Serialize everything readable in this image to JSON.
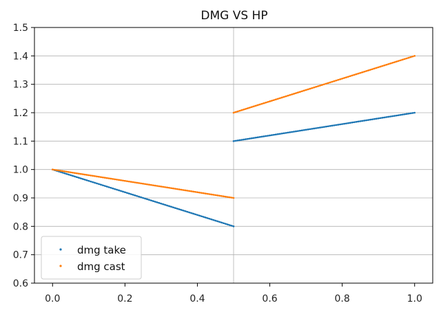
{
  "chart_data": {
    "type": "scatter",
    "title": "DMG VS HP",
    "xlabel": "",
    "ylabel": "",
    "xlim": [
      -0.05,
      1.05
    ],
    "ylim": [
      0.6,
      1.5
    ],
    "x_ticks": [
      0.0,
      0.2,
      0.4,
      0.6,
      0.8,
      1.0
    ],
    "x_tick_labels": [
      "0.0",
      "0.2",
      "0.4",
      "0.6",
      "0.8",
      "1.0"
    ],
    "y_ticks": [
      0.6,
      0.7,
      0.8,
      0.9,
      1.0,
      1.1,
      1.2,
      1.3,
      1.4,
      1.5
    ],
    "y_tick_labels": [
      "0.6",
      "0.7",
      "0.8",
      "0.9",
      "1.0",
      "1.1",
      "1.2",
      "1.3",
      "1.4",
      "1.5"
    ],
    "grid": true,
    "legend_position": "lower-left",
    "series": [
      {
        "name": "dmg take",
        "color": "#1f77b4",
        "segments": [
          {
            "x": [
              0.0,
              0.5
            ],
            "y": [
              1.0,
              0.8
            ]
          },
          {
            "x": [
              0.5,
              1.0
            ],
            "y": [
              1.1,
              1.2
            ]
          }
        ]
      },
      {
        "name": "dmg cast",
        "color": "#ff7f0e",
        "segments": [
          {
            "x": [
              0.0,
              0.5
            ],
            "y": [
              1.0,
              0.9
            ]
          },
          {
            "x": [
              0.5,
              1.0
            ],
            "y": [
              1.2,
              1.4
            ]
          }
        ]
      }
    ]
  }
}
